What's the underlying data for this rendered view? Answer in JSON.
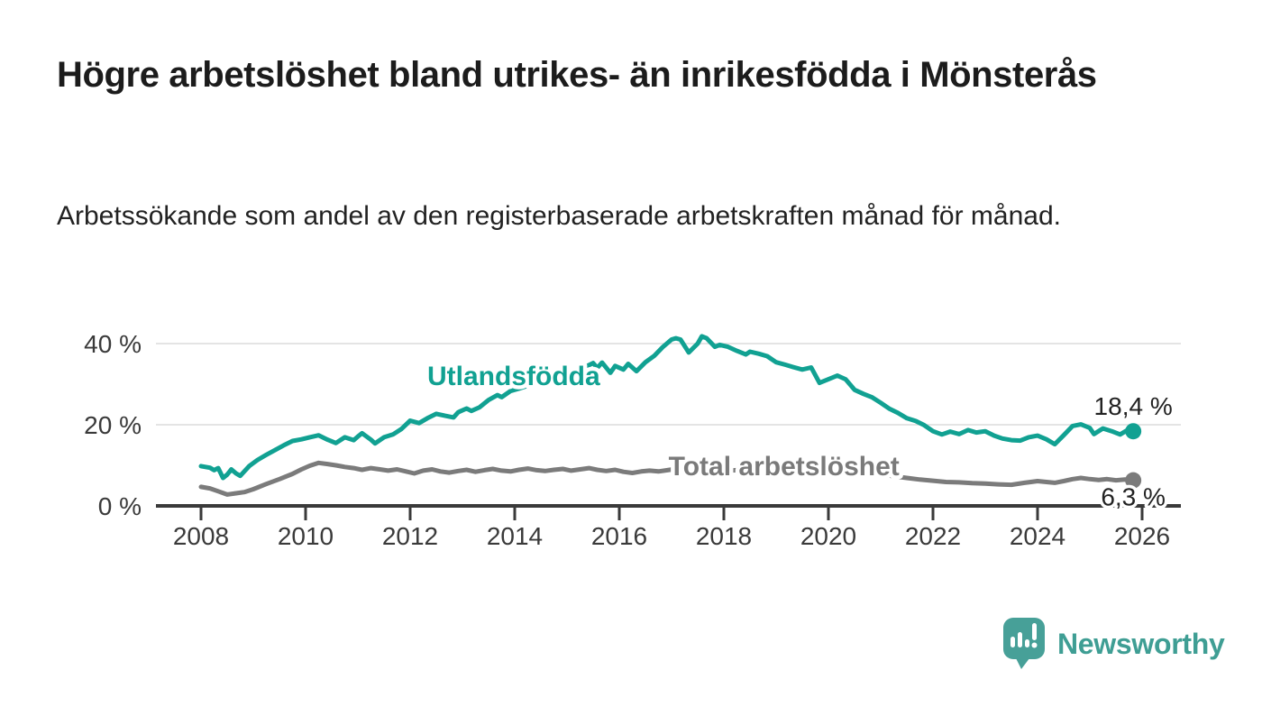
{
  "header": {
    "title": "Högre arbetslöshet bland utrikes- än inrikesfödda i Mönsterås",
    "subtitle": "Arbetssökande som andel av den registerbaserade arbetskraften månad för månad."
  },
  "footer": {
    "brand": "Newsworthy"
  },
  "colors": {
    "foreign_line": "#11a192",
    "total_line": "#7b7b7b",
    "total_label": "#7a7a7a",
    "grid": "#dcdcdc",
    "axis": "#3a3a3a",
    "tick_text": "#3a3a3a",
    "end_label_text": "#222222",
    "brand_teal": "#3f9e94",
    "brand_icon_teal": "#47a098"
  },
  "chart_data": {
    "type": "line",
    "title": "Högre arbetslöshet bland utrikes- än inrikesfödda i Mönsterås",
    "subtitle": "Arbetssökande som andel av den registerbaserade arbetskraften månad för månad.",
    "xlabel": "",
    "ylabel": "",
    "grid": "horizontal",
    "legend": "inline-labels",
    "x_axis": {
      "range": [
        2007.1,
        2026.75
      ],
      "ticks": [
        2008,
        2010,
        2012,
        2014,
        2016,
        2018,
        2020,
        2022,
        2024,
        2026
      ]
    },
    "y_axis": {
      "range": [
        0,
        44
      ],
      "unit": "%",
      "ticks": [
        {
          "v": 0,
          "label": "0 %"
        },
        {
          "v": 20,
          "label": "20 %"
        },
        {
          "v": 40,
          "label": "40 %"
        }
      ]
    },
    "series": [
      {
        "name": "Utlandsfödda",
        "color": "#11a192",
        "end_label": "18,4 %",
        "end_label_side": "above",
        "label_at": {
          "x": 2013.98,
          "y": 29.78
        },
        "points": [
          [
            2008.0,
            9.8
          ],
          [
            2008.17,
            9.4
          ],
          [
            2008.25,
            8.8
          ],
          [
            2008.33,
            9.3
          ],
          [
            2008.42,
            6.9
          ],
          [
            2008.5,
            7.7
          ],
          [
            2008.58,
            9.0
          ],
          [
            2008.67,
            8.0
          ],
          [
            2008.75,
            7.4
          ],
          [
            2008.92,
            9.8
          ],
          [
            2009.08,
            11.3
          ],
          [
            2009.25,
            12.6
          ],
          [
            2009.42,
            13.8
          ],
          [
            2009.58,
            14.9
          ],
          [
            2009.75,
            16.0
          ],
          [
            2009.92,
            16.4
          ],
          [
            2010.08,
            16.9
          ],
          [
            2010.25,
            17.4
          ],
          [
            2010.42,
            16.3
          ],
          [
            2010.58,
            15.5
          ],
          [
            2010.75,
            16.9
          ],
          [
            2010.92,
            16.2
          ],
          [
            2011.0,
            17.1
          ],
          [
            2011.08,
            17.9
          ],
          [
            2011.25,
            16.3
          ],
          [
            2011.33,
            15.4
          ],
          [
            2011.5,
            16.9
          ],
          [
            2011.67,
            17.6
          ],
          [
            2011.83,
            18.9
          ],
          [
            2012.0,
            21.0
          ],
          [
            2012.17,
            20.4
          ],
          [
            2012.33,
            21.6
          ],
          [
            2012.5,
            22.7
          ],
          [
            2012.67,
            22.2
          ],
          [
            2012.83,
            21.8
          ],
          [
            2012.92,
            23.1
          ],
          [
            2013.08,
            24.0
          ],
          [
            2013.17,
            23.4
          ],
          [
            2013.33,
            24.3
          ],
          [
            2013.5,
            26.1
          ],
          [
            2013.67,
            27.3
          ],
          [
            2013.75,
            26.8
          ],
          [
            2013.92,
            28.3
          ],
          [
            2014.08,
            28.9
          ],
          [
            2014.25,
            29.6
          ],
          [
            2014.5,
            30.6
          ],
          [
            2014.75,
            31.6
          ],
          [
            2015.0,
            32.6
          ],
          [
            2015.25,
            33.6
          ],
          [
            2015.5,
            35.2
          ],
          [
            2015.58,
            34.0
          ],
          [
            2015.67,
            35.3
          ],
          [
            2015.83,
            32.8
          ],
          [
            2015.92,
            34.5
          ],
          [
            2016.08,
            33.6
          ],
          [
            2016.17,
            35.0
          ],
          [
            2016.33,
            33.2
          ],
          [
            2016.5,
            35.4
          ],
          [
            2016.67,
            37.0
          ],
          [
            2016.83,
            39.1
          ],
          [
            2017.0,
            41.0
          ],
          [
            2017.08,
            41.3
          ],
          [
            2017.17,
            41.0
          ],
          [
            2017.33,
            37.8
          ],
          [
            2017.5,
            40.0
          ],
          [
            2017.58,
            41.8
          ],
          [
            2017.67,
            41.3
          ],
          [
            2017.83,
            39.2
          ],
          [
            2017.92,
            39.7
          ],
          [
            2018.08,
            39.2
          ],
          [
            2018.25,
            38.2
          ],
          [
            2018.42,
            37.3
          ],
          [
            2018.5,
            38.0
          ],
          [
            2018.67,
            37.5
          ],
          [
            2018.83,
            36.9
          ],
          [
            2019.0,
            35.4
          ],
          [
            2019.17,
            34.8
          ],
          [
            2019.33,
            34.2
          ],
          [
            2019.5,
            33.6
          ],
          [
            2019.67,
            34.1
          ],
          [
            2019.83,
            30.3
          ],
          [
            2020.0,
            31.2
          ],
          [
            2020.17,
            32.1
          ],
          [
            2020.33,
            31.2
          ],
          [
            2020.5,
            28.6
          ],
          [
            2020.67,
            27.6
          ],
          [
            2020.83,
            26.8
          ],
          [
            2021.0,
            25.4
          ],
          [
            2021.17,
            23.9
          ],
          [
            2021.33,
            22.9
          ],
          [
            2021.5,
            21.6
          ],
          [
            2021.67,
            20.9
          ],
          [
            2021.83,
            19.9
          ],
          [
            2022.0,
            18.4
          ],
          [
            2022.17,
            17.6
          ],
          [
            2022.33,
            18.3
          ],
          [
            2022.5,
            17.7
          ],
          [
            2022.67,
            18.7
          ],
          [
            2022.83,
            18.1
          ],
          [
            2023.0,
            18.4
          ],
          [
            2023.17,
            17.3
          ],
          [
            2023.33,
            16.6
          ],
          [
            2023.5,
            16.2
          ],
          [
            2023.67,
            16.1
          ],
          [
            2023.83,
            16.9
          ],
          [
            2024.0,
            17.3
          ],
          [
            2024.17,
            16.4
          ],
          [
            2024.33,
            15.2
          ],
          [
            2024.5,
            17.4
          ],
          [
            2024.67,
            19.7
          ],
          [
            2024.83,
            20.1
          ],
          [
            2025.0,
            19.2
          ],
          [
            2025.08,
            17.7
          ],
          [
            2025.25,
            19.1
          ],
          [
            2025.42,
            18.4
          ],
          [
            2025.58,
            17.6
          ],
          [
            2025.75,
            18.9
          ],
          [
            2025.83,
            18.4
          ]
        ]
      },
      {
        "name": "Total arbetslöshet",
        "color": "#7b7b7b",
        "end_label": "6,3 %",
        "end_label_side": "below",
        "label_at": {
          "x": 2019.15,
          "y": 7.56
        },
        "points": [
          [
            2008.0,
            4.7
          ],
          [
            2008.17,
            4.3
          ],
          [
            2008.33,
            3.6
          ],
          [
            2008.5,
            2.8
          ],
          [
            2008.67,
            3.1
          ],
          [
            2008.83,
            3.4
          ],
          [
            2009.0,
            4.1
          ],
          [
            2009.25,
            5.4
          ],
          [
            2009.5,
            6.6
          ],
          [
            2009.75,
            7.9
          ],
          [
            2009.92,
            9.0
          ],
          [
            2010.08,
            9.9
          ],
          [
            2010.25,
            10.6
          ],
          [
            2010.42,
            10.3
          ],
          [
            2010.58,
            10.0
          ],
          [
            2010.75,
            9.6
          ],
          [
            2010.92,
            9.3
          ],
          [
            2011.08,
            8.9
          ],
          [
            2011.25,
            9.3
          ],
          [
            2011.42,
            9.0
          ],
          [
            2011.58,
            8.7
          ],
          [
            2011.75,
            9.0
          ],
          [
            2011.92,
            8.5
          ],
          [
            2012.08,
            8.0
          ],
          [
            2012.25,
            8.7
          ],
          [
            2012.42,
            9.0
          ],
          [
            2012.58,
            8.5
          ],
          [
            2012.75,
            8.2
          ],
          [
            2012.92,
            8.6
          ],
          [
            2013.08,
            8.9
          ],
          [
            2013.25,
            8.4
          ],
          [
            2013.42,
            8.8
          ],
          [
            2013.58,
            9.1
          ],
          [
            2013.75,
            8.7
          ],
          [
            2013.92,
            8.5
          ],
          [
            2014.08,
            8.9
          ],
          [
            2014.25,
            9.2
          ],
          [
            2014.42,
            8.8
          ],
          [
            2014.58,
            8.6
          ],
          [
            2014.75,
            8.9
          ],
          [
            2014.92,
            9.1
          ],
          [
            2015.08,
            8.7
          ],
          [
            2015.25,
            9.0
          ],
          [
            2015.42,
            9.3
          ],
          [
            2015.58,
            8.9
          ],
          [
            2015.75,
            8.6
          ],
          [
            2015.92,
            8.9
          ],
          [
            2016.08,
            8.4
          ],
          [
            2016.25,
            8.1
          ],
          [
            2016.42,
            8.5
          ],
          [
            2016.58,
            8.7
          ],
          [
            2016.75,
            8.5
          ],
          [
            2016.92,
            8.8
          ],
          [
            2017.08,
            9.1
          ],
          [
            2017.25,
            9.4
          ],
          [
            2017.42,
            9.1
          ],
          [
            2017.58,
            8.9
          ],
          [
            2017.75,
            9.1
          ],
          [
            2017.92,
            8.9
          ],
          [
            2018.08,
            8.7
          ],
          [
            2018.25,
            8.8
          ],
          [
            2018.5,
            8.6
          ],
          [
            2018.75,
            8.4
          ],
          [
            2019.0,
            8.3
          ],
          [
            2019.25,
            8.1
          ],
          [
            2019.5,
            8.0
          ],
          [
            2019.75,
            8.2
          ],
          [
            2020.0,
            8.4
          ],
          [
            2020.25,
            8.8
          ],
          [
            2020.5,
            8.6
          ],
          [
            2020.75,
            8.2
          ],
          [
            2021.0,
            7.8
          ],
          [
            2021.25,
            7.3
          ],
          [
            2021.5,
            6.9
          ],
          [
            2021.75,
            6.5
          ],
          [
            2022.0,
            6.2
          ],
          [
            2022.25,
            5.9
          ],
          [
            2022.5,
            5.8
          ],
          [
            2022.75,
            5.6
          ],
          [
            2023.0,
            5.5
          ],
          [
            2023.25,
            5.3
          ],
          [
            2023.5,
            5.2
          ],
          [
            2023.75,
            5.7
          ],
          [
            2024.0,
            6.1
          ],
          [
            2024.17,
            5.9
          ],
          [
            2024.33,
            5.7
          ],
          [
            2024.5,
            6.1
          ],
          [
            2024.67,
            6.6
          ],
          [
            2024.83,
            6.9
          ],
          [
            2025.0,
            6.6
          ],
          [
            2025.17,
            6.4
          ],
          [
            2025.33,
            6.6
          ],
          [
            2025.5,
            6.3
          ],
          [
            2025.67,
            6.5
          ],
          [
            2025.83,
            6.3
          ]
        ]
      }
    ]
  }
}
